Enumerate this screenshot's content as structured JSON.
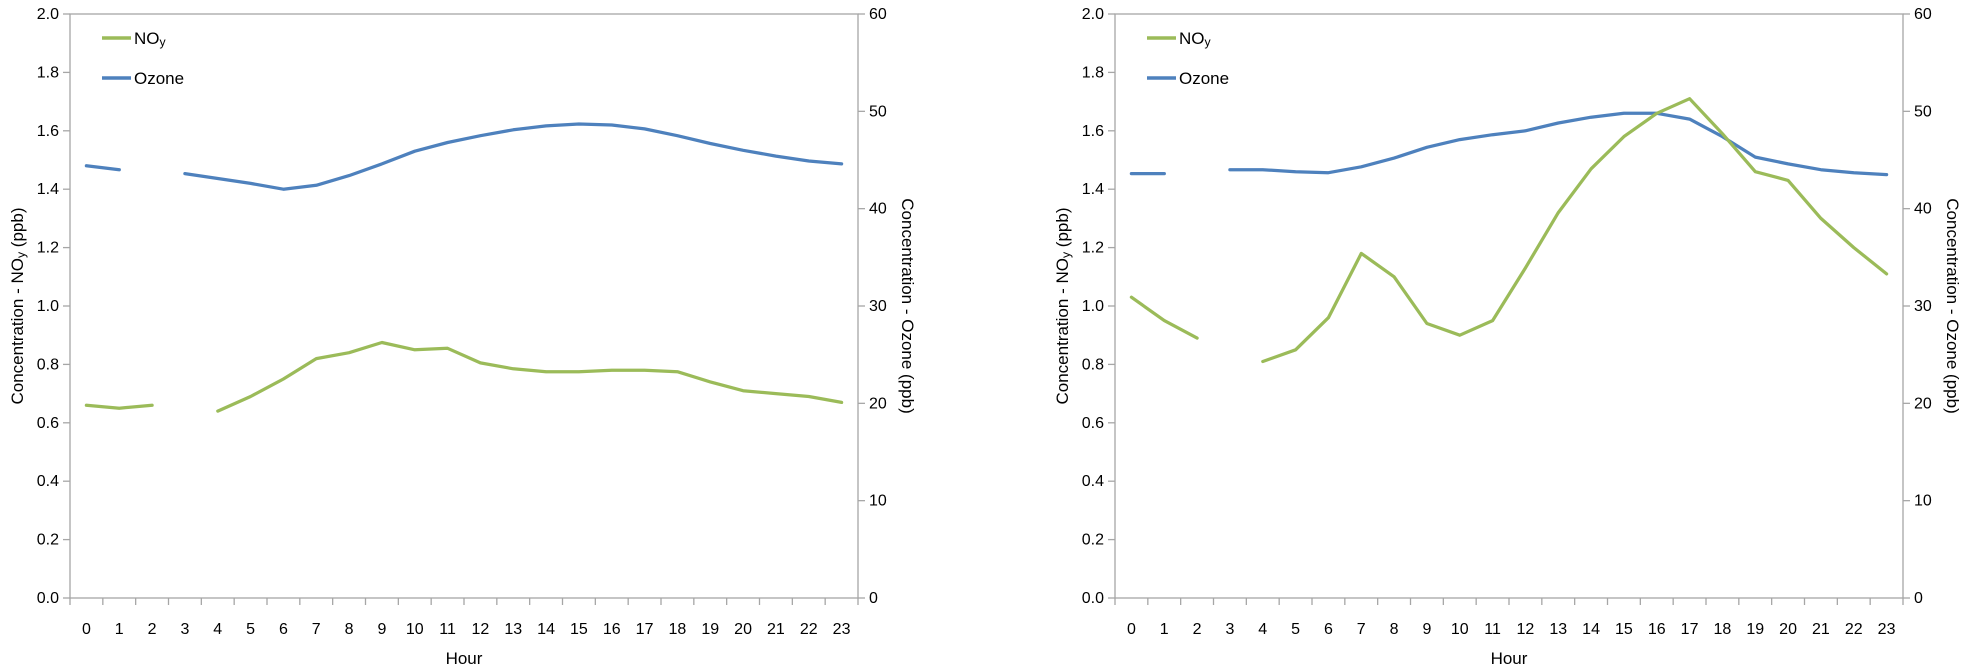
{
  "page": {
    "background": "#ffffff",
    "text_color": "#000000",
    "axis_color": "#a6a6a6"
  },
  "chart_data": [
    {
      "type": "line",
      "panel": "left",
      "x_title": "Hour",
      "x_labels": [
        "0",
        "1",
        "2",
        "3",
        "4",
        "5",
        "6",
        "7",
        "8",
        "9",
        "10",
        "11",
        "12",
        "13",
        "14",
        "15",
        "16",
        "17",
        "18",
        "19",
        "20",
        "21",
        "22",
        "23"
      ],
      "grid": false,
      "legend_position": "top-left",
      "y_left": {
        "title_parts": [
          {
            "text": "Concentration - NO"
          },
          {
            "text": "y",
            "sub": true
          },
          {
            "text": " (ppb)"
          }
        ],
        "min": 0,
        "max": 2,
        "step": 0.2,
        "decimals": 1
      },
      "y_right": {
        "title_parts": [
          {
            "text": "Concentration - Ozone (ppb)"
          }
        ],
        "min": 0,
        "max": 60,
        "step": 10,
        "decimals": 0
      },
      "series": [
        {
          "name": "NOy",
          "name_parts": [
            {
              "text": "NO"
            },
            {
              "text": "y",
              "sub": true
            }
          ],
          "axis": "left",
          "color": "#9BBB59",
          "values": [
            0.66,
            0.65,
            0.66,
            null,
            0.64,
            0.69,
            0.75,
            0.82,
            0.84,
            0.875,
            0.85,
            0.855,
            0.805,
            0.785,
            0.775,
            0.775,
            0.78,
            0.78,
            0.775,
            0.74,
            0.71,
            0.7,
            0.69,
            0.67
          ]
        },
        {
          "name": "Ozone",
          "name_parts": [
            {
              "text": "Ozone"
            }
          ],
          "axis": "right",
          "color": "#4E81BD",
          "values": [
            44.4,
            44.0,
            null,
            43.6,
            43.1,
            42.6,
            42.0,
            42.4,
            43.4,
            44.6,
            45.9,
            46.8,
            47.5,
            48.1,
            48.5,
            48.7,
            48.6,
            48.2,
            47.5,
            46.7,
            46.0,
            45.4,
            44.9,
            44.6
          ]
        }
      ]
    },
    {
      "type": "line",
      "panel": "right",
      "x_title": "Hour",
      "x_labels": [
        "0",
        "1",
        "2",
        "3",
        "4",
        "5",
        "6",
        "7",
        "8",
        "9",
        "10",
        "11",
        "12",
        "13",
        "14",
        "15",
        "16",
        "17",
        "18",
        "19",
        "20",
        "21",
        "22",
        "23"
      ],
      "grid": false,
      "legend_position": "top-left",
      "y_left": {
        "title_parts": [
          {
            "text": "Concentration - NO"
          },
          {
            "text": "y",
            "sub": true
          },
          {
            "text": " (ppb)"
          }
        ],
        "min": 0,
        "max": 2,
        "step": 0.2,
        "decimals": 1
      },
      "y_right": {
        "title_parts": [
          {
            "text": "Concentration - Ozone (ppb)"
          }
        ],
        "min": 0,
        "max": 60,
        "step": 10,
        "decimals": 0
      },
      "series": [
        {
          "name": "NOy",
          "name_parts": [
            {
              "text": "NO"
            },
            {
              "text": "y",
              "sub": true
            }
          ],
          "axis": "left",
          "color": "#9BBB59",
          "values": [
            1.03,
            0.95,
            0.89,
            null,
            0.81,
            0.85,
            0.96,
            1.18,
            1.1,
            0.94,
            0.9,
            0.95,
            1.13,
            1.32,
            1.47,
            1.58,
            1.66,
            1.71,
            1.59,
            1.46,
            1.43,
            1.3,
            1.2,
            1.11
          ]
        },
        {
          "name": "Ozone",
          "name_parts": [
            {
              "text": "Ozone"
            }
          ],
          "axis": "right",
          "color": "#4E81BD",
          "values": [
            43.6,
            43.6,
            null,
            44.0,
            44.0,
            43.8,
            43.7,
            44.3,
            45.2,
            46.3,
            47.1,
            47.6,
            48.0,
            48.8,
            49.4,
            49.8,
            49.8,
            49.2,
            47.4,
            45.3,
            44.6,
            44.0,
            43.7,
            43.5
          ]
        }
      ]
    }
  ]
}
